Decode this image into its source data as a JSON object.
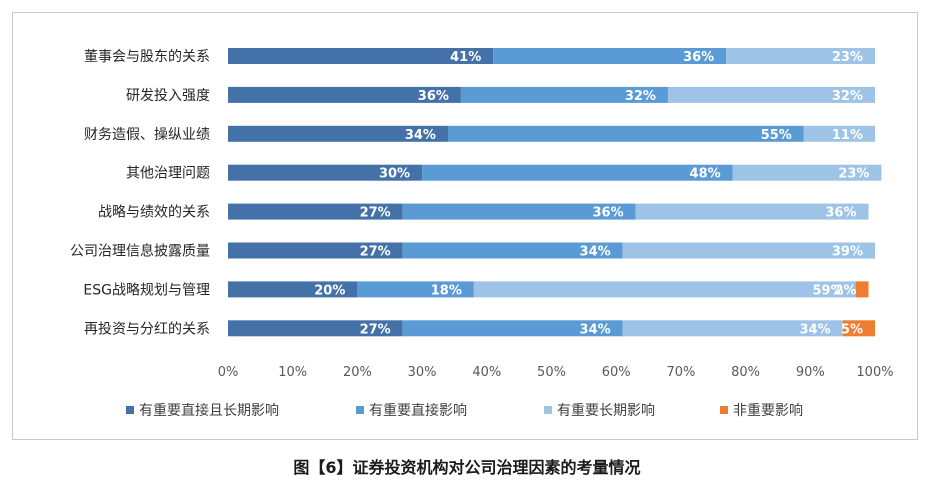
{
  "caption": "图【6】证券投资机构对公司治理因素的考量情况",
  "chart_data": {
    "type": "bar",
    "orientation": "horizontal",
    "stacked": "percent",
    "categories": [
      "董事会与股东的关系",
      "研发投入强度",
      "财务造假、操纵业绩",
      "其他治理问题",
      "战略与绩效的关系",
      "公司治理信息披露质量",
      "ESG战略规划与管理",
      "再投资与分红的关系"
    ],
    "series": [
      {
        "name": "有重要直接且长期影响",
        "color": "#4472a8",
        "values": [
          41,
          36,
          34,
          30,
          27,
          27,
          20,
          27
        ]
      },
      {
        "name": "有重要直接影响",
        "color": "#5b9bd5",
        "values": [
          36,
          32,
          55,
          48,
          36,
          34,
          18,
          34
        ]
      },
      {
        "name": "有重要长期影响",
        "color": "#9dc3e6",
        "values": [
          23,
          32,
          11,
          23,
          36,
          39,
          59,
          34
        ]
      },
      {
        "name": "非重要影响",
        "color": "#ed7d31",
        "values": [
          0,
          0,
          0,
          0,
          0,
          0,
          2,
          5
        ]
      }
    ],
    "data_labels": [
      [
        "41%",
        "36%",
        "23%",
        ""
      ],
      [
        "36%",
        "32%",
        "32%",
        ""
      ],
      [
        "34%",
        "55%",
        "11%",
        ""
      ],
      [
        "30%",
        "48%",
        "23%",
        ""
      ],
      [
        "27%",
        "36%",
        "36%",
        ""
      ],
      [
        "27%",
        "34%",
        "39%",
        ""
      ],
      [
        "20%",
        "18%",
        "59%",
        "2%"
      ],
      [
        "27%",
        "34%",
        "34%",
        "5%"
      ]
    ],
    "x_ticks": [
      "0%",
      "10%",
      "20%",
      "30%",
      "40%",
      "50%",
      "60%",
      "70%",
      "80%",
      "90%",
      "100%"
    ],
    "xlim": [
      0,
      100
    ],
    "legend_position": "bottom",
    "grid": false
  }
}
